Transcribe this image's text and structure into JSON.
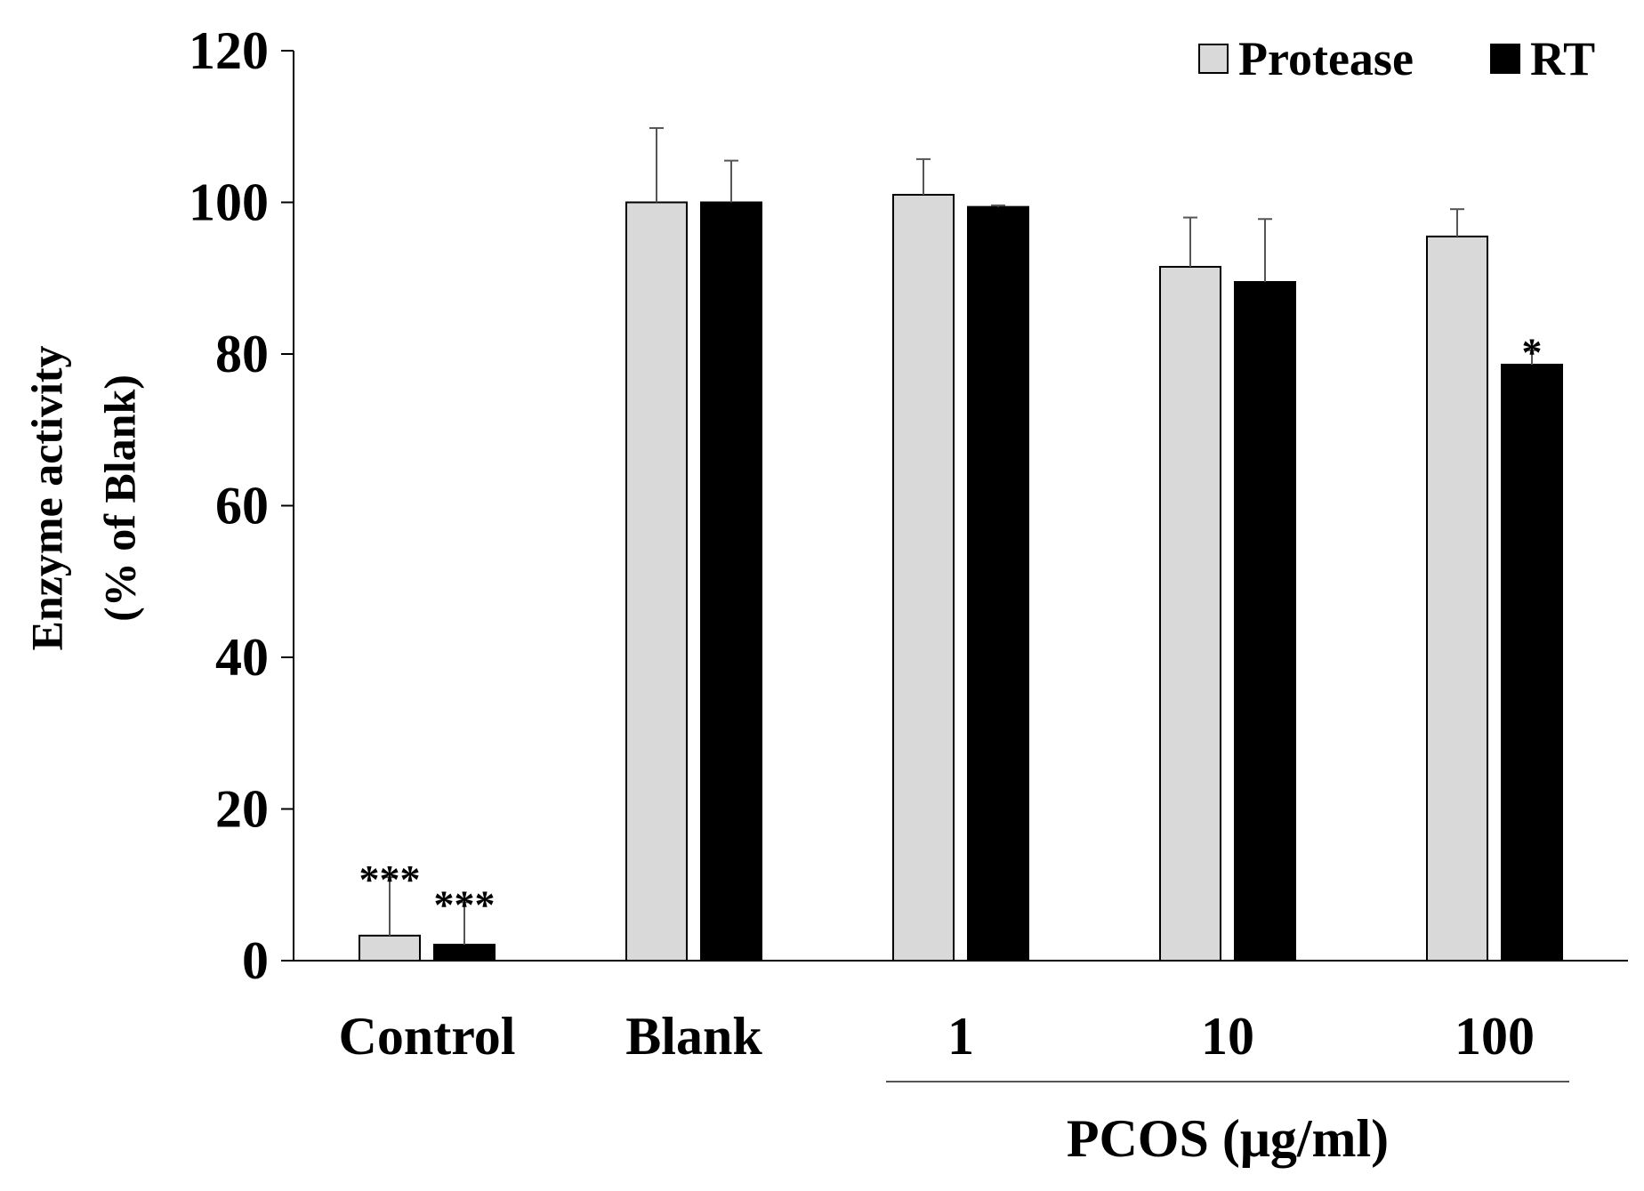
{
  "chart_data": {
    "type": "bar",
    "ylabel_lines": [
      "Enzyme activity",
      "(% of Blank)"
    ],
    "ylim": [
      0,
      120
    ],
    "yticks": [
      0,
      20,
      40,
      60,
      80,
      100,
      120
    ],
    "categories": [
      "Control",
      "Blank",
      "1",
      "10",
      "100"
    ],
    "group_label": "PCOS (μg/ml)",
    "series": [
      {
        "name": "Protease",
        "color": "#d9d9d9",
        "values": [
          3.3,
          100.0,
          101.0,
          91.5,
          95.5
        ],
        "errors": [
          7.7,
          9.8,
          4.7,
          6.5,
          3.6
        ],
        "significance": [
          "***",
          "",
          "",
          "",
          ""
        ]
      },
      {
        "name": "RT",
        "color": "#000000",
        "values": [
          2.1,
          100.0,
          99.4,
          89.5,
          78.6
        ],
        "errors": [
          5.6,
          5.5,
          0.2,
          8.3,
          1.9
        ],
        "significance": [
          "***",
          "",
          "",
          "",
          "*"
        ]
      }
    ],
    "legend_position": "top-right",
    "grid": false
  }
}
